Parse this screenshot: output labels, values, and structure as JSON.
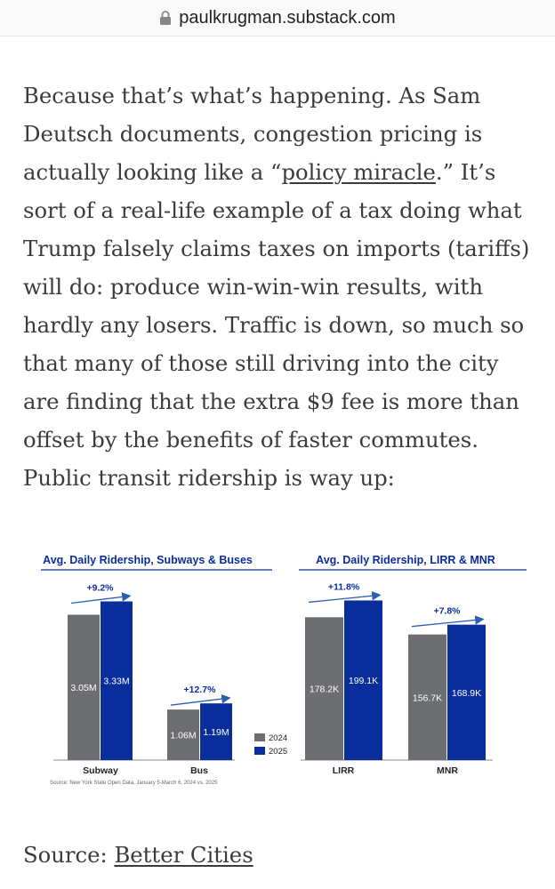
{
  "browser": {
    "url": "paulkrugman.substack.com",
    "lock_icon": "lock-icon"
  },
  "article": {
    "p1_a": "Because that’s what’s happening. As Sam Deutsch documents, congestion pricing is actually looking like a “",
    "link_policy": "policy miracle",
    "p1_b": ".” It’s sort of a real-life example of a tax doing what Trump falsely claims taxes on imports (tariffs) will do: produce win-win-win results, with hardly any losers. Traffic is down, so much so that many of those still driving into the city are finding that the extra $9 fee is more than offset by the benefits of faster commutes. Public transit ridership is way up:"
  },
  "chart_data": [
    {
      "type": "bar",
      "title": "Avg. Daily Ridership, Subways & Buses",
      "categories": [
        "Subway",
        "Bus"
      ],
      "series": [
        {
          "name": "2024",
          "values": [
            3.05,
            1.06
          ],
          "labels": [
            "3.05M",
            "1.06M"
          ]
        },
        {
          "name": "2025",
          "values": [
            3.33,
            1.19
          ],
          "labels": [
            "3.33M",
            "1.19M"
          ]
        }
      ],
      "changes": [
        "+9.2%",
        "+12.7%"
      ],
      "unit": "M",
      "ylim": [
        0,
        3.6
      ],
      "colors": {
        "2024": "#6d6e71",
        "2025": "#0a2d9c",
        "title": "#0a2d9c",
        "arrow": "#2a5fb0"
      }
    },
    {
      "type": "bar",
      "title": "Avg. Daily Ridership, LIRR & MNR",
      "categories": [
        "LIRR",
        "MNR"
      ],
      "series": [
        {
          "name": "2024",
          "values": [
            178.2,
            156.7
          ],
          "labels": [
            "178.2K",
            "156.7K"
          ]
        },
        {
          "name": "2025",
          "values": [
            199.1,
            168.9
          ],
          "labels": [
            "199.1K",
            "168.9K"
          ]
        }
      ],
      "changes": [
        "+11.8%",
        "+7.8%"
      ],
      "unit": "K",
      "ylim": [
        0,
        214
      ],
      "colors": {
        "2024": "#6d6e71",
        "2025": "#0a2d9c",
        "title": "#0a2d9c",
        "arrow": "#2a5fb0"
      }
    }
  ],
  "figure": {
    "legend": [
      "2024",
      "2025"
    ],
    "source_note": "Source: New York State Open Data, January 5-March 6, 2024 vs. 2025"
  },
  "source": {
    "label": "Source: ",
    "link": "Better Cities"
  }
}
